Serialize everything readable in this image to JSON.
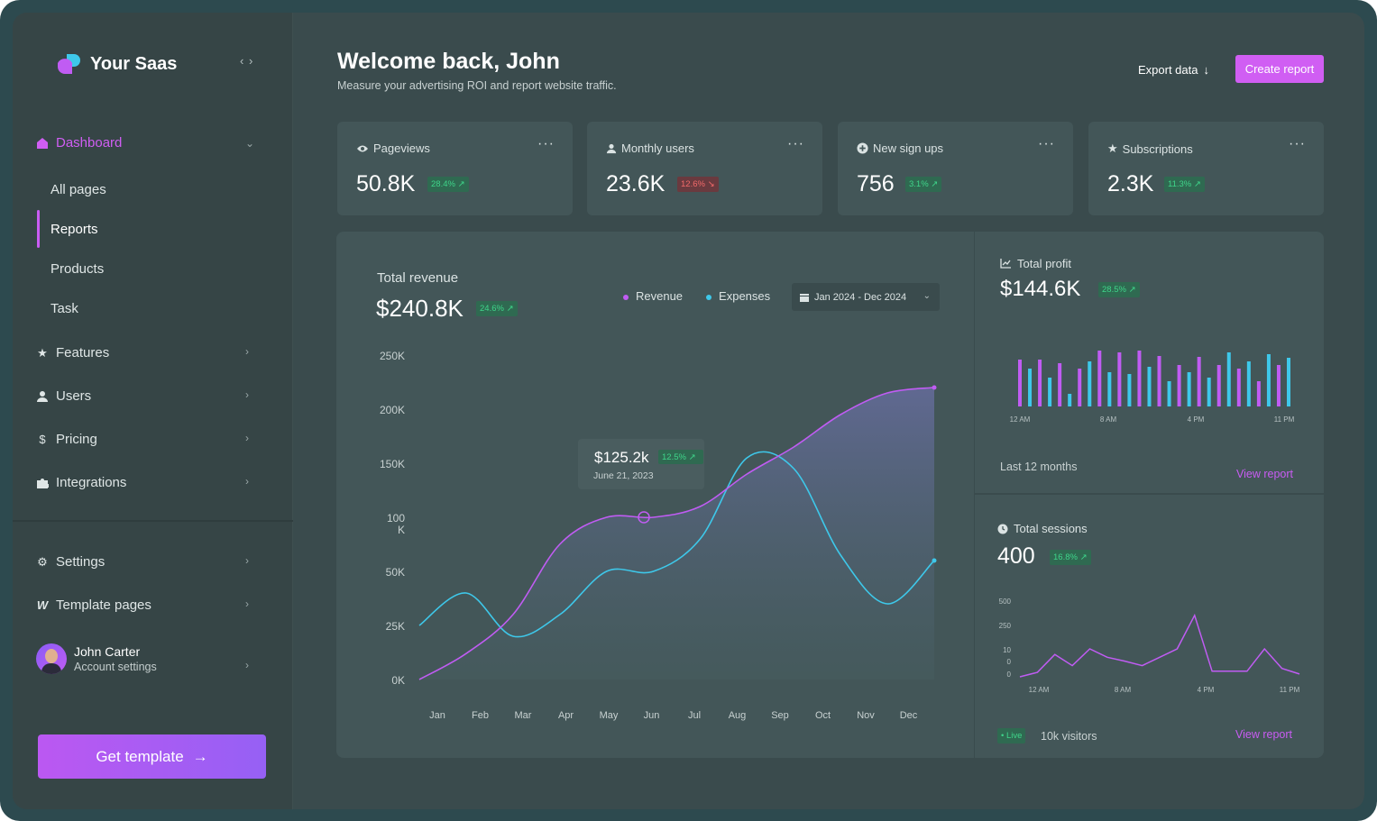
{
  "brand": {
    "name": "Your Saas",
    "collapse_icon": "code-chevrons-icon"
  },
  "sidebar": {
    "dashboard": "Dashboard",
    "sub_items": [
      "All pages",
      "Reports",
      "Products",
      "Task"
    ],
    "items": [
      {
        "label": "Features",
        "icon": "star-icon"
      },
      {
        "label": "Users",
        "icon": "user-icon"
      },
      {
        "label": "Pricing",
        "icon": "dollar-icon"
      },
      {
        "label": "Integrations",
        "icon": "puzzle-icon"
      }
    ],
    "settings": "Settings",
    "template_pages": "Template pages",
    "user": {
      "name": "John Carter",
      "sub": "Account settings"
    },
    "get_template": "Get template"
  },
  "header": {
    "title": "Welcome back, John",
    "subtitle": "Measure your advertising ROI and report website traffic.",
    "export": "Export data",
    "create": "Create report"
  },
  "stats": [
    {
      "label": "Pageviews",
      "value": "50.8K",
      "change": "28.4% ↗",
      "trend": "up",
      "icon": "eye-icon"
    },
    {
      "label": "Monthly users",
      "value": "23.6K",
      "change": "12.6% ↘",
      "trend": "down",
      "icon": "user-icon"
    },
    {
      "label": "New sign ups",
      "value": "756",
      "change": "3.1% ↗",
      "trend": "up",
      "icon": "plus-circle-icon"
    },
    {
      "label": "Subscriptions",
      "value": "2.3K",
      "change": "11.3% ↗",
      "trend": "up",
      "icon": "star-icon"
    }
  ],
  "revenue": {
    "label": "Total revenue",
    "value": "$240.8K",
    "change": "24.6% ↗",
    "legend_revenue": "Revenue",
    "legend_expenses": "Expenses",
    "date_range": "Jan 2024 - Dec 2024",
    "tooltip_value": "$125.2k",
    "tooltip_change": "12.5% ↗",
    "tooltip_date": "June 21, 2023"
  },
  "profit": {
    "label": "Total profit",
    "value": "$144.6K",
    "change": "28.5% ↗",
    "period": "Last 12 months",
    "view": "View report"
  },
  "sessions": {
    "label": "Total sessions",
    "value": "400",
    "change": "16.8% ↗",
    "live": "• Live",
    "visitors": "10k visitors",
    "view": "View report"
  },
  "colors": {
    "accent": "#d05ef3",
    "revenue": "#c05cf3",
    "expenses": "#3ec8ea",
    "up": "#3fd58a",
    "down": "#f26a6a"
  },
  "chart_data": [
    {
      "type": "line",
      "categories": [
        "Jan",
        "Feb",
        "Mar",
        "Apr",
        "May",
        "Jun",
        "Jul",
        "Aug",
        "Sep",
        "Oct",
        "Nov",
        "Dec"
      ],
      "y_ticks": [
        "250K",
        "200K",
        "150K",
        "100 K",
        "50K",
        "25K",
        "0K"
      ],
      "series": [
        {
          "name": "Revenue",
          "values": [
            0,
            12,
            30,
            75,
            100,
            100,
            110,
            140,
            165,
            195,
            215,
            220
          ]
        },
        {
          "name": "Expenses",
          "values": [
            25,
            40,
            20,
            30,
            50,
            50,
            80,
            155,
            145,
            65,
            35,
            60
          ]
        }
      ],
      "ylim": [
        0,
        250
      ],
      "grid": false,
      "legend": "top-right"
    },
    {
      "type": "bar",
      "x_ticks": [
        "12 AM",
        "8 AM",
        "4 PM",
        "11 PM"
      ],
      "series": [
        {
          "values": [
            52,
            42,
            52,
            32,
            48,
            14,
            42,
            50,
            62,
            38,
            60,
            36,
            62,
            44,
            56,
            28,
            46,
            38,
            55,
            32,
            46,
            60,
            42,
            50,
            28,
            58,
            46,
            54
          ]
        }
      ]
    },
    {
      "type": "line",
      "x_ticks": [
        "12 AM",
        "8 AM",
        "4 PM",
        "11 PM"
      ],
      "y_ticks": [
        "500",
        "250",
        "10",
        "0",
        "0"
      ],
      "series": [
        {
          "values": [
            0,
            8,
            40,
            20,
            50,
            35,
            28,
            20,
            35,
            50,
            110,
            10,
            10,
            10,
            50,
            15,
            5
          ]
        }
      ]
    }
  ]
}
